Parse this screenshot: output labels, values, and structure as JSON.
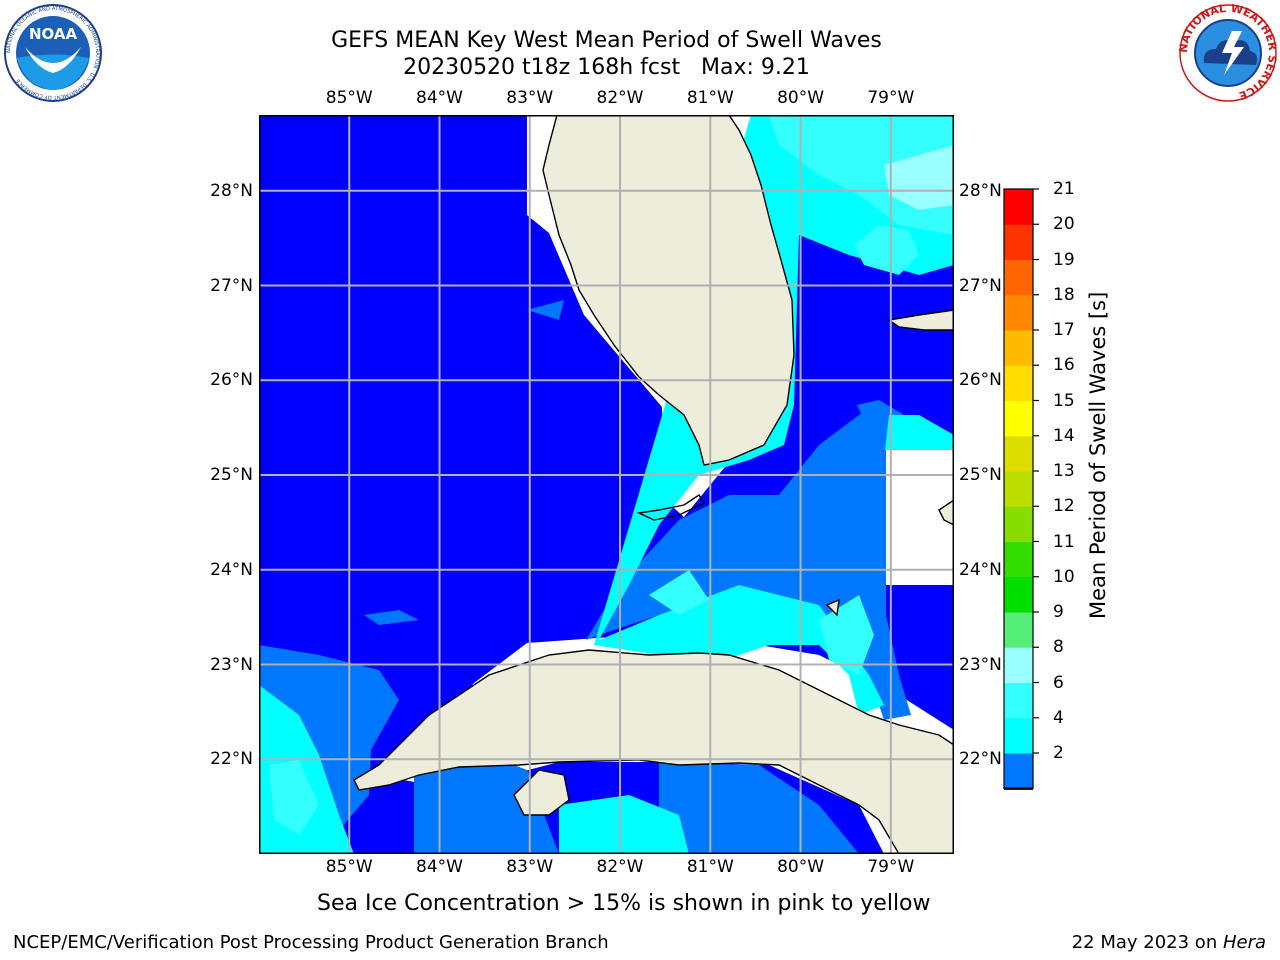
{
  "header": {
    "title_line1": "GEFS MEAN Key West Mean Period of Swell Waves",
    "title_line2": "20230520 t18z 168h fcst   Max: 9.21"
  },
  "logos": {
    "noaa": {
      "text": "NOAA",
      "ring_text": "NATIONAL OCEANIC AND ATMOSPHERIC ADMINISTRATION · U.S. DEPARTMENT OF COMMERCE"
    },
    "nws": {
      "ring_text": "NATIONAL WEATHER SERVICE"
    }
  },
  "map": {
    "lon_ticks": [
      "85°W",
      "84°W",
      "83°W",
      "82°W",
      "81°W",
      "80°W",
      "79°W"
    ],
    "lat_ticks": [
      "28°N",
      "27°N",
      "26°N",
      "25°N",
      "24°N",
      "23°N",
      "22°N"
    ],
    "lon_values": [
      -85,
      -84,
      -83,
      -82,
      -81,
      -80,
      -79
    ],
    "lat_values": [
      28,
      27,
      26,
      25,
      24,
      23,
      22
    ],
    "lon_range": [
      -86.0,
      -78.3
    ],
    "lat_range": [
      21.0,
      28.8
    ],
    "grid": true,
    "colors": {
      "land": "#eeeddc",
      "ocean_lt2": "#0000ff",
      "band_2_4": "#0077ff",
      "band_4_6": "#00ffff",
      "band_6_8": "#33ffff",
      "band_8_9": "#99ffff",
      "no_data": "#ffffff",
      "gridline": "#b0b0b0"
    }
  },
  "colorbar": {
    "label": "Mean Period of Swell Waves [s]",
    "ticks": [
      "21",
      "20",
      "19",
      "18",
      "17",
      "16",
      "15",
      "14",
      "13",
      "12",
      "11",
      "10",
      "9",
      "8",
      "6",
      "4",
      "2"
    ],
    "levels": [
      2,
      4,
      6,
      8,
      9,
      10,
      11,
      12,
      13,
      14,
      15,
      16,
      17,
      18,
      19,
      20,
      21
    ],
    "colors": [
      "#0077ff",
      "#00ffff",
      "#33ffff",
      "#99ffff",
      "#55ee77",
      "#00dd00",
      "#33dd00",
      "#88dd00",
      "#bbdd00",
      "#dddd00",
      "#ffff00",
      "#ffdd00",
      "#ffbb00",
      "#ff8800",
      "#ff6600",
      "#ff3300",
      "#ff0000"
    ],
    "under_color": "#0000ff"
  },
  "notes": {
    "sea_ice": "Sea Ice Concentration > 15% is shown in pink to yellow"
  },
  "footer": {
    "left": "NCEP/EMC/Verification Post Processing Product Generation Branch",
    "right_date": "22 May 2023 on ",
    "right_host": "Hera"
  }
}
